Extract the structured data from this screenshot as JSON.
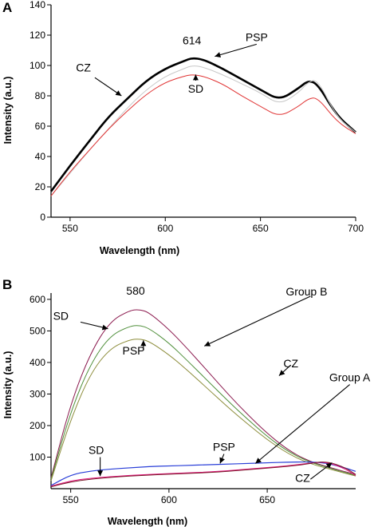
{
  "chart_data": [
    {
      "panel": "A",
      "type": "line",
      "xlabel": "Wavelength (nm)",
      "ylabel": "Intensity (a.u.)",
      "xlim": [
        540,
        700
      ],
      "ylim": [
        0,
        140
      ],
      "xticks": [
        550,
        600,
        650,
        700
      ],
      "yticks": [
        0,
        20,
        40,
        60,
        80,
        100,
        120,
        140
      ],
      "grid": false,
      "annotations": [
        {
          "text": "614",
          "x": 614,
          "y": 114
        },
        {
          "text": "PSP",
          "x": 648,
          "y": 116
        },
        {
          "text": "CZ",
          "x": 557,
          "y": 96
        },
        {
          "text": "SD",
          "x": 616,
          "y": 82
        }
      ],
      "series": [
        {
          "name": "CZ",
          "color": "#000000",
          "x": [
            540,
            550,
            560,
            570,
            580,
            590,
            600,
            610,
            614,
            620,
            630,
            640,
            650,
            660,
            670,
            675,
            680,
            690,
            700
          ],
          "values": [
            17,
            34,
            50,
            66,
            78,
            90,
            98,
            103,
            105,
            104,
            98,
            91,
            84,
            77,
            85,
            90,
            88,
            67,
            56
          ]
        },
        {
          "name": "PSP",
          "color": "#c8c8c8",
          "x": [
            540,
            550,
            560,
            570,
            580,
            590,
            600,
            610,
            614,
            620,
            630,
            640,
            650,
            660,
            670,
            675,
            680,
            690,
            700
          ],
          "values": [
            14,
            29,
            44,
            58,
            72,
            84,
            93,
            98,
            100,
            99,
            94,
            88,
            82,
            74,
            82,
            89,
            91,
            66,
            56
          ]
        },
        {
          "name": "SD",
          "color": "#e03232",
          "x": [
            540,
            550,
            560,
            570,
            580,
            590,
            600,
            610,
            614,
            620,
            630,
            640,
            650,
            660,
            670,
            675,
            680,
            690,
            700
          ],
          "values": [
            14,
            30,
            44,
            58,
            70,
            81,
            89,
            93,
            94,
            93,
            88,
            80,
            73,
            66,
            73,
            78,
            79,
            63,
            55
          ]
        }
      ]
    },
    {
      "panel": "B",
      "type": "line",
      "xlabel": "Wavelength (nm)",
      "ylabel": "Intensity (a.u.)",
      "xlim": [
        540,
        695
      ],
      "ylim": [
        0,
        620
      ],
      "xticks": [
        550,
        600,
        650
      ],
      "yticks": [
        100,
        200,
        300,
        400,
        500,
        600
      ],
      "grid": false,
      "annotations": [
        {
          "text": "580",
          "x": 583,
          "y": 615
        },
        {
          "text": "Group B",
          "x": 670,
          "y": 612
        },
        {
          "text": "SD",
          "x": 545,
          "y": 535
        },
        {
          "text": "PSP",
          "x": 582,
          "y": 425
        },
        {
          "text": "CZ",
          "x": 662,
          "y": 385
        },
        {
          "text": "Group A",
          "x": 692,
          "y": 340
        },
        {
          "text": "SD",
          "x": 563,
          "y": 110
        },
        {
          "text": "PSP",
          "x": 628,
          "y": 120
        },
        {
          "text": "CZ",
          "x": 668,
          "y": 22
        }
      ],
      "series": [
        {
          "name": "CZ",
          "group": "Group B",
          "color": "#8b1a4e",
          "x": [
            540,
            550,
            560,
            570,
            580,
            585,
            590,
            600,
            610,
            620,
            630,
            640,
            650,
            660,
            670,
            680,
            695
          ],
          "values": [
            35,
            270,
            430,
            530,
            565,
            568,
            558,
            505,
            440,
            370,
            300,
            235,
            175,
            125,
            90,
            70,
            45
          ]
        },
        {
          "name": "SD",
          "group": "Group B",
          "color": "#4f8f3a",
          "x": [
            540,
            550,
            560,
            570,
            580,
            585,
            590,
            600,
            610,
            620,
            630,
            640,
            650,
            660,
            670,
            680,
            695
          ],
          "values": [
            30,
            245,
            395,
            485,
            515,
            518,
            508,
            462,
            402,
            340,
            278,
            220,
            165,
            120,
            88,
            68,
            42
          ]
        },
        {
          "name": "PSP",
          "group": "Group B",
          "color": "#8c8c3a",
          "x": [
            540,
            550,
            560,
            570,
            580,
            585,
            590,
            600,
            610,
            620,
            630,
            640,
            650,
            660,
            670,
            680,
            695
          ],
          "values": [
            25,
            220,
            365,
            445,
            472,
            475,
            467,
            425,
            372,
            315,
            258,
            205,
            155,
            113,
            83,
            65,
            40
          ]
        },
        {
          "name": "PSP",
          "group": "Group A",
          "color": "#2a3fd8",
          "x": [
            540,
            550,
            560,
            570,
            580,
            590,
            600,
            610,
            620,
            630,
            640,
            650,
            660,
            670,
            680,
            690,
            695
          ],
          "values": [
            10,
            44,
            56,
            62,
            66,
            70,
            72,
            74,
            76,
            78,
            80,
            82,
            84,
            85,
            82,
            65,
            55
          ]
        },
        {
          "name": "SD",
          "group": "Group A",
          "color": "#e0107a",
          "x": [
            540,
            550,
            560,
            570,
            580,
            590,
            600,
            610,
            620,
            630,
            640,
            650,
            660,
            670,
            680,
            690,
            695
          ],
          "values": [
            8,
            25,
            33,
            38,
            42,
            45,
            48,
            50,
            53,
            57,
            62,
            67,
            72,
            80,
            86,
            62,
            42
          ]
        },
        {
          "name": "CZ",
          "group": "Group A",
          "color": "#7a1a2a",
          "x": [
            540,
            550,
            560,
            570,
            580,
            590,
            600,
            610,
            620,
            630,
            640,
            650,
            660,
            670,
            680,
            690,
            695
          ],
          "values": [
            6,
            22,
            30,
            36,
            40,
            43,
            46,
            48,
            51,
            55,
            60,
            65,
            70,
            78,
            88,
            66,
            45
          ]
        }
      ]
    }
  ]
}
